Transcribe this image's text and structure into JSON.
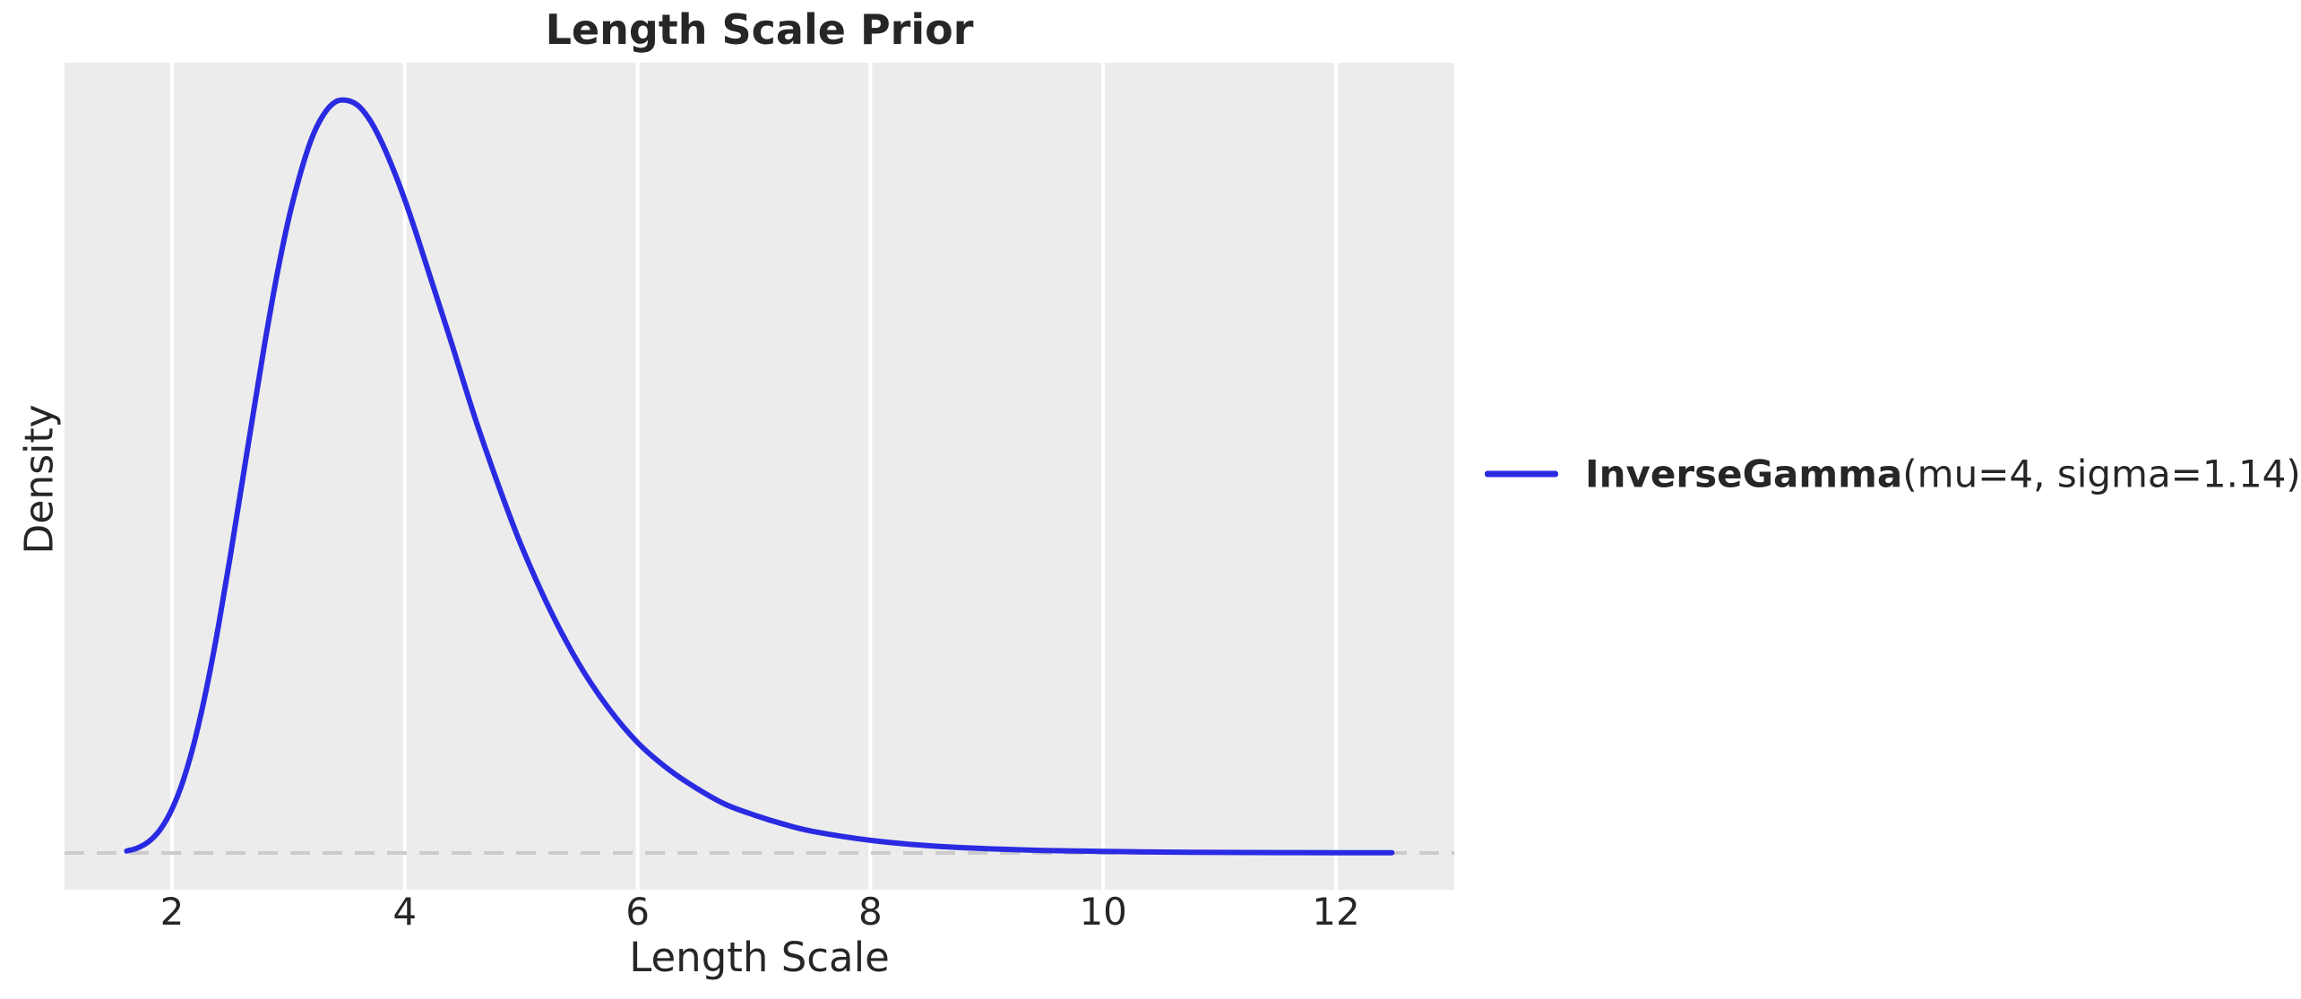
{
  "page": {
    "background": "#ffffff",
    "text_color": "#262626"
  },
  "chart_data": {
    "type": "line",
    "title": "Length Scale Prior",
    "xlabel": "Length Scale",
    "ylabel": "Density",
    "xticks": [
      2,
      4,
      6,
      8,
      10,
      12
    ],
    "yticks": [],
    "xlim": [
      1.076,
      13.016
    ],
    "ylim": [
      -0.0203,
      0.4368
    ],
    "grid": {
      "vertical": true,
      "horizontal": false
    },
    "plot_bg_color": "#ececec",
    "grid_color": "#ffffff",
    "baseline": {
      "y": 0,
      "style": "dashed",
      "color": "#cbcbcb"
    },
    "legend_position": "center-right-outside",
    "series": [
      {
        "name": "InverseGamma(mu=4, sigma=1.14)",
        "distribution": "InverseGamma",
        "mu": 4,
        "sigma": 1.14,
        "color": "#2a2ae2",
        "peak": {
          "x": 3.5,
          "density": 0.416
        },
        "x": [
          1.61,
          1.7,
          1.8,
          1.9,
          2.0,
          2.1,
          2.2,
          2.3,
          2.4,
          2.5,
          2.6,
          2.7,
          2.8,
          2.9,
          3.0,
          3.1,
          3.2,
          3.3,
          3.4,
          3.5,
          3.6,
          3.7,
          3.8,
          3.9,
          4.0,
          4.1,
          4.2,
          4.4,
          4.6,
          4.8,
          5.0,
          5.25,
          5.5,
          5.75,
          6.0,
          6.25,
          6.5,
          6.75,
          7.0,
          7.25,
          7.5,
          8.0,
          8.5,
          9.0,
          9.5,
          10.0,
          10.5,
          11.0,
          11.5,
          12.0,
          12.48
        ],
        "y": [
          0.0011,
          0.0027,
          0.0063,
          0.0131,
          0.0243,
          0.0409,
          0.0635,
          0.0922,
          0.126,
          0.164,
          0.204,
          0.244,
          0.283,
          0.319,
          0.35,
          0.375,
          0.395,
          0.408,
          0.415,
          0.416,
          0.413,
          0.405,
          0.393,
          0.378,
          0.361,
          0.342,
          0.322,
          0.282,
          0.241,
          0.204,
          0.17,
          0.134,
          0.104,
          0.08,
          0.061,
          0.047,
          0.036,
          0.027,
          0.021,
          0.016,
          0.012,
          0.007,
          0.004,
          0.0024,
          0.0014,
          0.0009,
          0.0005,
          0.0003,
          0.0002,
          0.00013,
          8e-05
        ]
      }
    ]
  },
  "legend": {
    "bold_text": "InverseGamma",
    "regular_text": "(mu=4, sigma=1.14)",
    "line_color": "#2a2ae2"
  }
}
